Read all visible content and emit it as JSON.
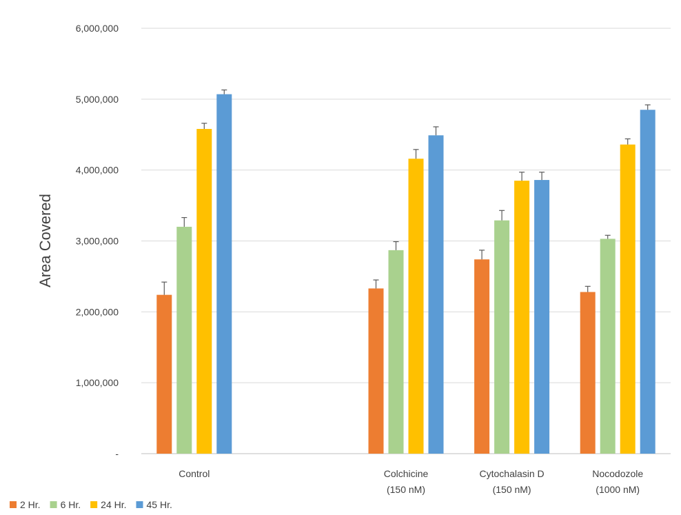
{
  "chart_data": {
    "type": "bar",
    "title": "",
    "xlabel": "",
    "ylabel": "Area Covered",
    "ylim": [
      0,
      6000000
    ],
    "yticks": [
      0,
      1000000,
      2000000,
      3000000,
      4000000,
      5000000,
      6000000
    ],
    "ytick_labels": [
      "-",
      "1,000,000",
      "2,000,000",
      "3,000,000",
      "4,000,000",
      "5,000,000",
      "6,000,000"
    ],
    "grid": true,
    "legend_position": "bottom-left",
    "categories": [
      [
        "Control"
      ],
      [],
      [
        "Colchicine",
        "(150 nM)"
      ],
      [
        "Cytochalasin D",
        "(150 nM)"
      ],
      [
        "Nocodozole",
        "(1000 nM)"
      ]
    ],
    "series": [
      {
        "name": "2 Hr.",
        "color": "#ED7D31",
        "values": [
          2240000,
          null,
          2330000,
          2740000,
          2280000
        ],
        "errors": [
          180000,
          null,
          120000,
          130000,
          80000
        ]
      },
      {
        "name": "6 Hr.",
        "color": "#A9D18E",
        "values": [
          3200000,
          null,
          2870000,
          3290000,
          3030000
        ],
        "errors": [
          130000,
          null,
          120000,
          140000,
          50000
        ]
      },
      {
        "name": "24 Hr.",
        "color": "#FFC000",
        "values": [
          4580000,
          null,
          4160000,
          3850000,
          4360000
        ],
        "errors": [
          80000,
          null,
          130000,
          120000,
          80000
        ]
      },
      {
        "name": "45 Hr.",
        "color": "#5B9BD5",
        "values": [
          5070000,
          null,
          4490000,
          3860000,
          4850000
        ],
        "errors": [
          60000,
          null,
          120000,
          110000,
          70000
        ]
      }
    ],
    "error_color": "#595959",
    "grid_color": "#D9D9D9",
    "axis_color": "#BFBFBF"
  }
}
